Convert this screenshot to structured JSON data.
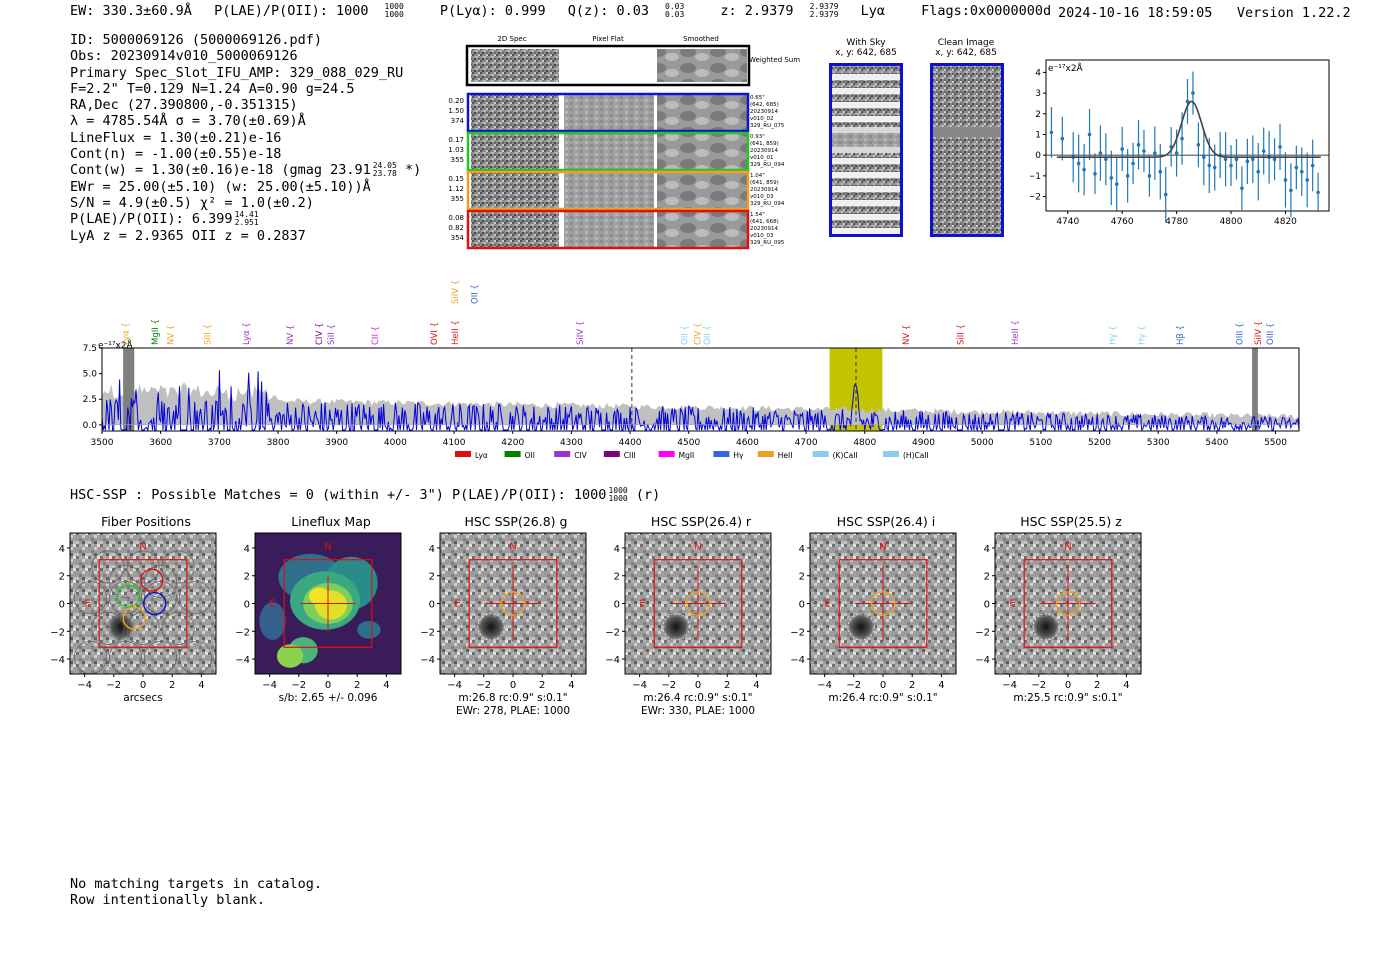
{
  "header": {
    "ew": "EW: 330.3±60.9Å",
    "plae_label": "P(LAE)/P(OII): 1000",
    "plae_hi": "1000",
    "plae_lo": "1000",
    "plya": "P(Lyα): 0.999",
    "qz_label": "Q(z): 0.03",
    "qz_hi": "0.03",
    "qz_lo": "0.03",
    "z_label": "z: 2.9379",
    "z_hi": "2.9379",
    "z_lo": "2.9379",
    "line_name": "Lyα",
    "flags": "Flags:0x0000000d",
    "timestamp": "2024-10-16 18:59:05",
    "version": "Version 1.22.2"
  },
  "info": {
    "id": "ID: 5000069126 (5000069126.pdf)",
    "obs": "Obs: 20230914v010_5000069126",
    "primary": "Primary Spec_Slot_IFU_AMP: 329_088_029_RU",
    "fibers": "F=2.2\"  T=0.129  N=1.24  A=0.90  g=24.5",
    "radec": "RA,Dec (27.390800,-0.351315)",
    "lambda": "λ = 4785.54Å   σ = 3.70(±0.69)Å",
    "lineflux": "LineFlux = 1.30(±0.21)e-16",
    "contn": "Cont(n) = -1.00(±0.55)e-18",
    "contw": "Cont(w) = 1.30(±0.16)e-18 (gmag 23.91",
    "contw_hi": "24.05",
    "contw_lo": "23.78",
    "contw_end": "*)",
    "ewr": "EWr = 25.00(±5.10) (w: 25.00(±5.10))Å",
    "sn": "S/N = 4.9(±0.5)  χ² = 1.0(±0.2)",
    "plae": "P(LAE)/P(OII): 6.399",
    "plae_hi": "14.41",
    "plae_lo": "2.951",
    "lya_z": "LyA z = 2.9365  OII z = 0.2837"
  },
  "cutouts": {
    "col_titles": [
      "2D Spec",
      "Pixel Flat",
      "Smoothed"
    ],
    "weighted_sum": "Weighted Sum",
    "rows": [
      {
        "left": [
          "0.20",
          "1.50",
          "374"
        ],
        "right": [
          "0.65\"",
          "(642, 685)",
          "20230914",
          "v010_02",
          "329_RU_075"
        ],
        "color": "#1010d0"
      },
      {
        "left": [
          "0.17",
          "1.03",
          "355"
        ],
        "right": [
          "0.93\"",
          "(641, 859)",
          "20230914",
          "v010_01",
          "329_RU_094"
        ],
        "color": "#22c822"
      },
      {
        "left": [
          "0.15",
          "1.12",
          "355"
        ],
        "right": [
          "1.04\"",
          "(641, 859)",
          "20230914",
          "v010_03",
          "329_RU_094"
        ],
        "color": "#f0a020"
      },
      {
        "left": [
          "0.08",
          "0.82",
          "354"
        ],
        "right": [
          "1.54\"",
          "(641, 668)",
          "20230914",
          "v010_03",
          "329_RU_095"
        ],
        "color": "#e01010"
      }
    ],
    "with_sky_title": "With Sky",
    "with_sky_xy": "x, y: 642, 685",
    "clean_title": "Clean Image",
    "clean_xy": "x, y: 642, 685"
  },
  "zoom_plot": {
    "unit": "e⁻¹⁷x2Å",
    "xticks": [
      "4740",
      "4760",
      "4780",
      "4800",
      "4820"
    ],
    "yticks": [
      "4",
      "3",
      "2",
      "1",
      "0",
      "−1",
      "−2"
    ]
  },
  "spectrum": {
    "unit": "e⁻¹⁷x2Å",
    "yticks": [
      "7.5",
      "5.0",
      "2.5",
      "0.0"
    ],
    "xticks": [
      "3500",
      "3600",
      "3700",
      "3800",
      "3900",
      "4000",
      "4100",
      "4200",
      "4300",
      "4400",
      "4500",
      "4600",
      "4700",
      "4800",
      "4900",
      "5000",
      "5100",
      "5200",
      "5300",
      "5400",
      "5500"
    ],
    "line_labels_top": [
      {
        "text": "SiIV",
        "color": "#f0a020",
        "w": 4102
      },
      {
        "text": "OII",
        "color": "#3366cc",
        "w": 4135
      }
    ],
    "line_labels": [
      {
        "text": "Lyα",
        "color": "#f0a020",
        "w": 3540
      },
      {
        "text": "MgII",
        "color": "#008000",
        "w": 3590
      },
      {
        "text": "NV",
        "color": "#f0a020",
        "w": 3617
      },
      {
        "text": "SiII",
        "color": "#f0a020",
        "w": 3680
      },
      {
        "text": "Lyα",
        "color": "#9933cc",
        "w": 3745
      },
      {
        "text": "NV",
        "color": "#9933cc",
        "w": 3820
      },
      {
        "text": "CIV",
        "color": "#800080",
        "w": 3870
      },
      {
        "text": "SiII",
        "color": "#9933cc",
        "w": 3890
      },
      {
        "text": "CII",
        "color": "#e020e0",
        "w": 3965
      },
      {
        "text": "OVI",
        "color": "#e01010",
        "w": 4066
      },
      {
        "text": "HeII",
        "color": "#e01010",
        "w": 4102
      },
      {
        "text": "SiIV",
        "color": "#9933cc",
        "w": 4315
      },
      {
        "text": "OII",
        "color": "#87ceeb",
        "w": 4493
      },
      {
        "text": "CIV",
        "color": "#f0a020",
        "w": 4515
      },
      {
        "text": "OII",
        "color": "#87ceeb",
        "w": 4531
      },
      {
        "text": "NV",
        "color": "#e01010",
        "w": 4870
      },
      {
        "text": "SiII",
        "color": "#e01010",
        "w": 4963
      },
      {
        "text": "HeII",
        "color": "#9933cc",
        "w": 5056
      },
      {
        "text": "Hγ",
        "color": "#87ceeb",
        "w": 5222
      },
      {
        "text": "Hγ",
        "color": "#87ceeb",
        "w": 5272
      },
      {
        "text": "Hβ",
        "color": "#3366cc",
        "w": 5337
      },
      {
        "text": "OIII",
        "color": "#3366cc",
        "w": 5439
      },
      {
        "text": "SiIV",
        "color": "#e01010",
        "w": 5470
      },
      {
        "text": "OIII",
        "color": "#3366cc",
        "w": 5491
      }
    ],
    "legend": [
      {
        "text": "Lyα",
        "color": "#e01010"
      },
      {
        "text": "OII",
        "color": "#008000"
      },
      {
        "text": "CIV",
        "color": "#9933cc"
      },
      {
        "text": "CIII",
        "color": "#800080"
      },
      {
        "text": "MgII",
        "color": "#ff00ff"
      },
      {
        "text": "Hγ",
        "color": "#3366dd"
      },
      {
        "text": "HeII",
        "color": "#f0a020"
      },
      {
        "text": "(K)CaII",
        "color": "#87ceeb"
      },
      {
        "text": "(H)CaII",
        "color": "#87ceeb"
      }
    ]
  },
  "hsc": {
    "line": "HSC-SSP : Possible Matches = 0 (within +/- 3\")  P(LAE)/P(OII): 1000",
    "plae_hi": "1000",
    "plae_lo": "1000",
    "band": "(r)",
    "panels": [
      {
        "title": "Fiber Positions",
        "caption1": "arcsecs",
        "caption2": ""
      },
      {
        "title": "Lineflux Map",
        "caption1": "s/b: 2.65 +/- 0.096",
        "caption2": ""
      },
      {
        "title": "HSC SSP(26.8) g",
        "caption1": "m:26.8 rc:0.9\"  s:0.1\"",
        "caption2": "EWr: 278, PLAE: 1000"
      },
      {
        "title": "HSC SSP(26.4) r",
        "caption1": "m:26.4 rc:0.9\"  s:0.1\"",
        "caption2": "EWr: 330, PLAE: 1000"
      },
      {
        "title": "HSC SSP(26.4) i",
        "caption1": "m:26.4 rc:0.9\"  s:0.1\"",
        "caption2": ""
      },
      {
        "title": "HSC SSP(25.5) z",
        "caption1": "m:25.5 rc:0.9\"  s:0.1\"",
        "caption2": ""
      }
    ],
    "ticks": [
      "4",
      "2",
      "0",
      "−2",
      "−4"
    ],
    "xticks": [
      "−4",
      "−2",
      "0",
      "2",
      "4"
    ],
    "north": "N",
    "east": "E"
  },
  "footer": {
    "line1": "No matching targets in catalog.",
    "line2": "Row intentionally blank."
  },
  "chart_data": [
    {
      "type": "line",
      "title": "",
      "xlabel": "",
      "ylabel": "e-17 x2Å",
      "xlim": [
        3500,
        5540
      ],
      "ylim": [
        -0.6,
        7.5
      ],
      "series": [
        {
          "name": "spectrum",
          "color": "#0000dd",
          "note": "noisy spectrum, emission peak near 4785 Å (~3.1)"
        },
        {
          "name": "error",
          "color": "#b0b0b0",
          "note": "filled error envelope decreasing from ~2.5 to ~0.8"
        }
      ],
      "highlight_band": [
        4740,
        4830
      ],
      "dashed_lines": [
        4403,
        4785
      ]
    },
    {
      "type": "scatter",
      "title": "",
      "xlabel": "",
      "ylabel": "e-17 x2Å",
      "xlim": [
        4732,
        4836
      ],
      "ylim": [
        -2.7,
        4.6
      ],
      "x": [
        4734,
        4738,
        4742,
        4744,
        4746,
        4748,
        4750,
        4752,
        4754,
        4756,
        4758,
        4760,
        4762,
        4764,
        4766,
        4768,
        4770,
        4772,
        4774,
        4776,
        4778,
        4780,
        4782,
        4784,
        4786,
        4788,
        4790,
        4792,
        4794,
        4796,
        4798,
        4800,
        4802,
        4804,
        4806,
        4808,
        4810,
        4812,
        4814,
        4816,
        4818,
        4820,
        4822,
        4824,
        4826,
        4828,
        4830,
        4832
      ],
      "y": [
        1.1,
        0.8,
        -0.1,
        -0.4,
        -0.7,
        1.0,
        -0.9,
        0.1,
        -0.2,
        -1.1,
        -1.4,
        0.3,
        -1.0,
        -0.4,
        0.5,
        0.2,
        -1.0,
        0.1,
        -0.8,
        -1.9,
        0.4,
        0.1,
        0.8,
        2.6,
        3.0,
        0.5,
        -0.1,
        -0.5,
        -0.6,
        0.0,
        -0.2,
        -0.5,
        -0.2,
        -1.6,
        -0.3,
        -0.2,
        -0.8,
        0.2,
        -0.1,
        -0.2,
        0.4,
        -1.2,
        -1.7,
        -0.6,
        -0.8,
        -1.2,
        -0.5,
        -1.8
      ],
      "xticks": [
        4740,
        4760,
        4780,
        4800,
        4820
      ],
      "yticks": [
        -2,
        -1,
        0,
        1,
        2,
        3,
        4
      ],
      "fit": {
        "center": 4785.5,
        "amplitude": 2.7,
        "sigma": 3.7,
        "baseline": -0.1
      }
    }
  ]
}
